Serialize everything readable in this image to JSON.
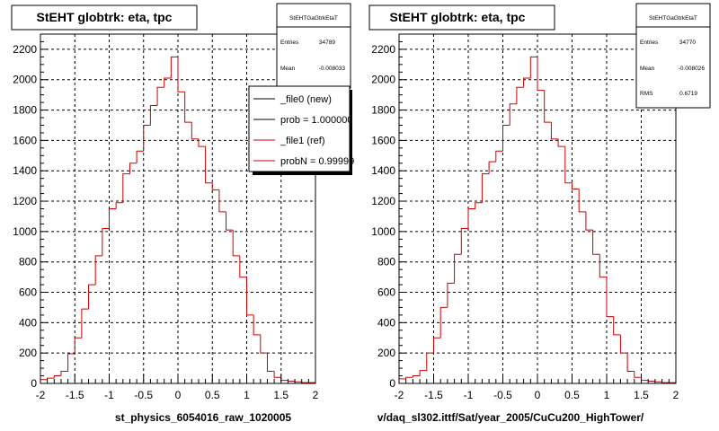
{
  "chart_data": [
    {
      "type": "histogram",
      "title": "StEHT globtrk: eta, tpc",
      "xlabel": "st_physics_6054016_raw_1020005",
      "ylabel": "",
      "xlim": [
        -2,
        2
      ],
      "ylim": [
        0,
        2300
      ],
      "grid": true,
      "xticks": [
        "-2",
        "-1.5",
        "-1",
        "-0.5",
        "0",
        "0.5",
        "1",
        "1.5",
        "2"
      ],
      "yticks": [
        "0",
        "200",
        "400",
        "600",
        "800",
        "1000",
        "1200",
        "1400",
        "1600",
        "1800",
        "2000",
        "2200"
      ],
      "bin_edges": [
        -2.0,
        -1.9,
        -1.8,
        -1.7,
        -1.6,
        -1.5,
        -1.4,
        -1.3,
        -1.2,
        -1.1,
        -1.0,
        -0.9,
        -0.8,
        -0.7,
        -0.6,
        -0.5,
        -0.4,
        -0.3,
        -0.2,
        -0.1,
        0.0,
        0.1,
        0.2,
        0.3,
        0.4,
        0.5,
        0.6,
        0.7,
        0.8,
        0.9,
        1.0,
        1.1,
        1.2,
        1.3,
        1.4,
        1.5,
        1.6,
        1.7,
        1.8,
        1.9,
        2.0
      ],
      "series": [
        {
          "name": "_file1 (ref)",
          "color": "#cc0000",
          "values": [
            25,
            35,
            50,
            80,
            195,
            300,
            490,
            650,
            840,
            1020,
            1150,
            1190,
            1380,
            1450,
            1530,
            1700,
            1830,
            1950,
            2010,
            2150,
            1920,
            1720,
            1610,
            1560,
            1320,
            1275,
            1130,
            1010,
            840,
            700,
            450,
            320,
            200,
            80,
            40,
            20,
            15,
            10,
            5,
            5
          ]
        }
      ],
      "stats": {
        "name": "StEHTGaGtrkEtaT",
        "entries_label": "Entries",
        "entries": "34789",
        "mean_label": "Mean",
        "mean": "-0.008033"
      },
      "legend": {
        "position": "top-right",
        "entries": [
          {
            "label": "_file0 (new)",
            "color": "#000000"
          },
          {
            "label": "prob = 1.000000",
            "color": "#000000"
          },
          {
            "label": "_file1 (ref)",
            "color": "#cc0000"
          },
          {
            "label": "probN = 0.99999",
            "color": "#cc0000"
          }
        ]
      }
    },
    {
      "type": "histogram",
      "title": "StEHT globtrk: eta, tpc",
      "xlabel": "v/daq_sl302.ittf/Sat/year_2005/CuCu200_HighTower/",
      "ylabel": "",
      "xlim": [
        -2,
        2
      ],
      "ylim": [
        0,
        2300
      ],
      "grid": true,
      "xticks": [
        "-2",
        "-1.5",
        "-1",
        "-0.5",
        "0",
        "0.5",
        "1",
        "1.5",
        "2"
      ],
      "yticks": [
        "0",
        "200",
        "400",
        "600",
        "800",
        "1000",
        "1200",
        "1400",
        "1600",
        "1800",
        "2000",
        "2200"
      ],
      "bin_edges": [
        -2.0,
        -1.9,
        -1.8,
        -1.7,
        -1.6,
        -1.5,
        -1.4,
        -1.3,
        -1.2,
        -1.1,
        -1.0,
        -0.9,
        -0.8,
        -0.7,
        -0.6,
        -0.5,
        -0.4,
        -0.3,
        -0.2,
        -0.1,
        0.0,
        0.1,
        0.2,
        0.3,
        0.4,
        0.5,
        0.6,
        0.7,
        0.8,
        0.9,
        1.0,
        1.1,
        1.2,
        1.3,
        1.4,
        1.5,
        1.6,
        1.7,
        1.8,
        1.9,
        2.0
      ],
      "series": [
        {
          "name": "",
          "color": "#cc0000",
          "values": [
            30,
            40,
            50,
            85,
            200,
            300,
            500,
            660,
            850,
            1020,
            1150,
            1190,
            1380,
            1460,
            1530,
            1700,
            1840,
            1950,
            2010,
            2150,
            1930,
            1720,
            1610,
            1560,
            1320,
            1280,
            1130,
            1010,
            850,
            700,
            440,
            320,
            200,
            80,
            40,
            20,
            15,
            10,
            5,
            5
          ]
        }
      ],
      "stats": {
        "name": "StEHTGaGtrkEtaT",
        "entries_label": "Entries",
        "entries": "34770",
        "mean_label": "Mean",
        "mean": "-0.008026",
        "rms_label": "RMS",
        "rms": "0.6719"
      }
    }
  ]
}
